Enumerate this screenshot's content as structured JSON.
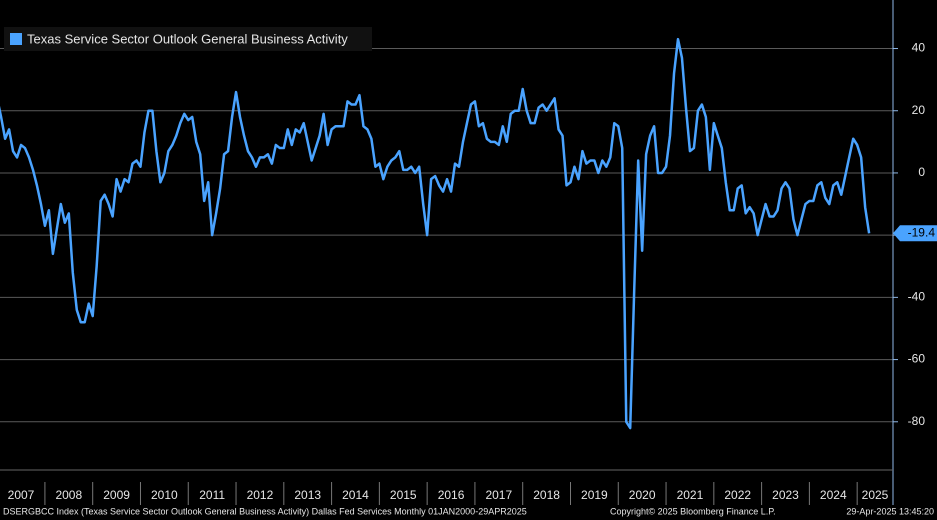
{
  "chart_data": {
    "type": "line",
    "title": "Texas Service Sector Outlook General Business Activity",
    "source": "DSERGBCC Index (Texas Service Sector Outlook General Business Activity) Dallas Fed Services  Monthly 01JAN2000-29APR2025",
    "copyright": "Copyright© 2025 Bloomberg Finance L.P.",
    "timestamp": "29-Apr-2025 13:45:20",
    "x": [
      2007,
      2007.083,
      2007.167,
      2007.25,
      2007.333,
      2007.417,
      2007.5,
      2007.583,
      2007.667,
      2007.75,
      2007.833,
      2007.917,
      2008,
      2008.083,
      2008.167,
      2008.25,
      2008.333,
      2008.417,
      2008.5,
      2008.583,
      2008.667,
      2008.75,
      2008.833,
      2008.917,
      2009,
      2009.083,
      2009.167,
      2009.25,
      2009.333,
      2009.417,
      2009.5,
      2009.583,
      2009.667,
      2009.75,
      2009.833,
      2009.917,
      2010,
      2010.083,
      2010.167,
      2010.25,
      2010.333,
      2010.417,
      2010.5,
      2010.583,
      2010.667,
      2010.75,
      2010.833,
      2010.917,
      2011,
      2011.083,
      2011.167,
      2011.25,
      2011.333,
      2011.417,
      2011.5,
      2011.583,
      2011.667,
      2011.75,
      2011.833,
      2011.917,
      2012,
      2012.083,
      2012.167,
      2012.25,
      2012.333,
      2012.417,
      2012.5,
      2012.583,
      2012.667,
      2012.75,
      2012.833,
      2012.917,
      2013,
      2013.083,
      2013.167,
      2013.25,
      2013.333,
      2013.417,
      2013.5,
      2013.583,
      2013.667,
      2013.75,
      2013.833,
      2013.917,
      2014,
      2014.083,
      2014.167,
      2014.25,
      2014.333,
      2014.417,
      2014.5,
      2014.583,
      2014.667,
      2014.75,
      2014.833,
      2014.917,
      2015,
      2015.083,
      2015.167,
      2015.25,
      2015.333,
      2015.417,
      2015.5,
      2015.583,
      2015.667,
      2015.75,
      2015.833,
      2015.917,
      2016,
      2016.083,
      2016.167,
      2016.25,
      2016.333,
      2016.417,
      2016.5,
      2016.583,
      2016.667,
      2016.75,
      2016.833,
      2016.917,
      2017,
      2017.083,
      2017.167,
      2017.25,
      2017.333,
      2017.417,
      2017.5,
      2017.583,
      2017.667,
      2017.75,
      2017.833,
      2017.917,
      2018,
      2018.083,
      2018.167,
      2018.25,
      2018.333,
      2018.417,
      2018.5,
      2018.583,
      2018.667,
      2018.75,
      2018.833,
      2018.917,
      2019,
      2019.083,
      2019.167,
      2019.25,
      2019.333,
      2019.417,
      2019.5,
      2019.583,
      2019.667,
      2019.75,
      2019.833,
      2019.917,
      2020,
      2020.083,
      2020.167,
      2020.25,
      2020.333,
      2020.417,
      2020.5,
      2020.583,
      2020.667,
      2020.75,
      2020.833,
      2020.917,
      2021,
      2021.083,
      2021.167,
      2021.25,
      2021.333,
      2021.417,
      2021.5,
      2021.583,
      2021.667,
      2021.75,
      2021.833,
      2021.917,
      2022,
      2022.083,
      2022.167,
      2022.25,
      2022.333,
      2022.417,
      2022.5,
      2022.583,
      2022.667,
      2022.75,
      2022.833,
      2022.917,
      2023,
      2023.083,
      2023.167,
      2023.25,
      2023.333,
      2023.417,
      2023.5,
      2023.583,
      2023.667,
      2023.75,
      2023.833,
      2023.917,
      2024,
      2024.083,
      2024.167,
      2024.25,
      2024.333,
      2024.417,
      2024.5,
      2024.583,
      2024.667,
      2024.75,
      2024.833,
      2024.917,
      2025,
      2025.083,
      2025.167,
      2025.25
    ],
    "series": [
      {
        "name": "Texas Service Sector Outlook General Business Activity",
        "color": "#4aa3ff",
        "values": [
          24,
          18,
          11,
          14,
          7,
          5,
          9,
          8,
          5,
          1,
          -4,
          -10,
          -17,
          -12,
          -26,
          -18,
          -10,
          -16,
          -13,
          -32,
          -44,
          -48,
          -48,
          -42,
          -46,
          -30,
          -9,
          -7,
          -10,
          -14,
          -2,
          -6,
          -2,
          -3,
          3,
          4,
          2,
          13,
          20,
          20,
          7,
          -3,
          0,
          7,
          9,
          12,
          16,
          19,
          17,
          18,
          10,
          6,
          -9,
          -3,
          -20,
          -13,
          -5,
          6,
          7,
          18,
          26,
          18,
          12,
          7,
          5,
          2,
          5,
          5,
          6,
          3,
          9,
          8,
          8,
          14,
          9,
          14,
          13,
          16,
          10,
          4,
          8,
          12,
          19,
          9,
          14,
          15,
          15,
          15,
          23,
          22,
          22,
          25,
          15,
          14,
          11,
          2,
          3,
          -2,
          2,
          4,
          5,
          7,
          1,
          1,
          2,
          0,
          2,
          -10,
          -20,
          -2,
          -1,
          -4,
          -6,
          -2,
          -6,
          3,
          2,
          10,
          16,
          22,
          23,
          15,
          16,
          11,
          10,
          10,
          9,
          15,
          10,
          19,
          20,
          20,
          27,
          20,
          16,
          16,
          21,
          22,
          20,
          22,
          24,
          14,
          12,
          -4,
          -3,
          2,
          -2,
          7,
          3,
          4,
          4,
          0,
          4,
          2,
          5,
          16,
          15,
          8,
          -80,
          -82,
          -38,
          4,
          -25,
          6,
          12,
          15,
          0,
          0,
          2,
          12,
          32,
          43,
          37,
          21,
          7,
          8,
          20,
          22,
          18,
          1,
          16,
          12,
          8,
          -3,
          -12,
          -12,
          -5,
          -4,
          -13,
          -11,
          -13,
          -20,
          -15,
          -10,
          -14,
          -14,
          -12,
          -5,
          -3,
          -5,
          -15,
          -20,
          -15,
          -10,
          -9,
          -9,
          -4,
          -3,
          -8,
          -10,
          -4,
          -3,
          -7,
          -1,
          5,
          11,
          9,
          5,
          -11,
          -19.4
        ]
      }
    ],
    "xlim": [
      2007.06,
      2025.75
    ],
    "xticks": [
      2007,
      2008,
      2009,
      2010,
      2011,
      2012,
      2013,
      2014,
      2015,
      2016,
      2017,
      2018,
      2019,
      2020,
      2021,
      2022,
      2023,
      2024,
      2025
    ],
    "ylim": [
      -95.5,
      55.6
    ],
    "yticks": [
      -80,
      -60,
      -40,
      -20,
      0,
      20,
      40
    ],
    "grid": true,
    "legend": "top-left"
  }
}
